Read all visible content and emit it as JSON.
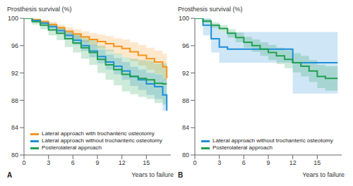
{
  "chart_data": [
    {
      "type": "line",
      "panel_label": "A",
      "y_label": "Prosthesis survival (%)",
      "x_label": "Years to failure",
      "line_style": "step",
      "legend": "lower left",
      "x": [
        0,
        1,
        2,
        3,
        4,
        5,
        6,
        7,
        8,
        9,
        10,
        11,
        12,
        13,
        14,
        15,
        16,
        17,
        17.5
      ],
      "xlim": [
        0,
        18
      ],
      "xticks": [
        0,
        3,
        6,
        9,
        12,
        15
      ],
      "ylim": [
        80,
        100
      ],
      "yticks": [
        80,
        84,
        88,
        92,
        96,
        100
      ],
      "series": [
        {
          "name": "Lateral approach with trochanteric osteotomy",
          "color": "#f7941d",
          "values": [
            100,
            99.8,
            99.5,
            99.1,
            98.6,
            98.1,
            97.7,
            97.3,
            96.9,
            96.6,
            96.3,
            95.9,
            95.6,
            95.1,
            94.6,
            94.1,
            93.6,
            92.9,
            91.2
          ],
          "lower": [
            100,
            99.6,
            99.2,
            98.7,
            98.1,
            97.5,
            97.0,
            96.5,
            96.0,
            95.6,
            95.2,
            94.7,
            94.3,
            93.7,
            93.1,
            92.5,
            91.9,
            91.0,
            89.2
          ],
          "upper": [
            100,
            100,
            99.8,
            99.5,
            99.1,
            98.7,
            98.4,
            98.1,
            97.8,
            97.6,
            97.4,
            97.1,
            96.9,
            96.5,
            96.1,
            95.7,
            95.3,
            94.8,
            93.2
          ]
        },
        {
          "name": "Lateral approach without trochanteric osteotomy",
          "color": "#1f8fd8",
          "values": [
            100,
            99.7,
            99.3,
            98.8,
            98.2,
            97.5,
            96.8,
            96.0,
            95.2,
            94.4,
            93.6,
            93.0,
            92.3,
            91.5,
            91.0,
            90.4,
            90.0,
            88.8,
            86.5
          ],
          "lower": [
            100,
            99.5,
            99.0,
            98.4,
            97.7,
            96.9,
            96.1,
            95.2,
            94.3,
            93.4,
            92.5,
            91.8,
            91.0,
            90.1,
            89.5,
            88.8,
            88.2,
            86.5,
            82.5
          ],
          "upper": [
            100,
            99.9,
            99.6,
            99.2,
            98.7,
            98.1,
            97.5,
            96.8,
            96.1,
            95.4,
            94.7,
            94.2,
            93.6,
            92.9,
            92.5,
            92.0,
            91.8,
            91.1,
            90.5
          ]
        },
        {
          "name": "Posterolateral approach",
          "color": "#20a050",
          "values": [
            100,
            99.5,
            99.0,
            98.3,
            97.8,
            97.0,
            96.4,
            95.7,
            95.0,
            94.0,
            93.2,
            92.5,
            91.8,
            91.5,
            91.2,
            91.0,
            90.5,
            90.4,
            90.4
          ],
          "lower": [
            100,
            99.1,
            98.4,
            97.5,
            96.8,
            95.8,
            95.0,
            94.1,
            93.2,
            92.0,
            91.0,
            90.2,
            89.3,
            88.9,
            88.5,
            88.2,
            87.6,
            87.4,
            87.4
          ],
          "upper": [
            100,
            99.9,
            99.6,
            99.1,
            98.8,
            98.2,
            97.8,
            97.3,
            96.8,
            96.0,
            95.4,
            94.8,
            94.3,
            94.1,
            93.9,
            93.8,
            93.4,
            93.4,
            93.4
          ]
        }
      ]
    },
    {
      "type": "line",
      "panel_label": "B",
      "y_label": "Prosthesis survival (%)",
      "x_label": "Years to failure",
      "line_style": "step",
      "legend": "lower left",
      "x": [
        0,
        1,
        2,
        3,
        4,
        5,
        6,
        7,
        8,
        9,
        10,
        11,
        12,
        13,
        14,
        15,
        16,
        17,
        17.5
      ],
      "xlim": [
        0,
        18
      ],
      "xticks": [
        0,
        3,
        6,
        9,
        12,
        15
      ],
      "ylim": [
        80,
        100
      ],
      "yticks": [
        80,
        84,
        88,
        92,
        96,
        100
      ],
      "series": [
        {
          "name": "Lateral approach without trochanteric osteotomy",
          "color": "#1f8fd8",
          "values": [
            100,
            99.0,
            97.0,
            95.8,
            95.5,
            95.5,
            95.5,
            95.5,
            95.5,
            95.5,
            95.5,
            95.5,
            93.5,
            93.5,
            93.5,
            93.5,
            93.5,
            93.5,
            93.5
          ],
          "lower": [
            100,
            97.5,
            95.0,
            93.5,
            93.5,
            93.5,
            93.5,
            93.5,
            93.5,
            93.5,
            93.5,
            93.5,
            89.0,
            89.0,
            89.0,
            89.0,
            89.0,
            89.0,
            89.0
          ],
          "upper": [
            100,
            100,
            99.0,
            98.0,
            98.0,
            98.0,
            98.0,
            98.0,
            98.0,
            98.0,
            98.0,
            98.0,
            98.0,
            98.0,
            98.0,
            98.0,
            98.0,
            98.0,
            98.0
          ]
        },
        {
          "name": "Posterolateral approach",
          "color": "#20a050",
          "values": [
            100,
            99.6,
            99.0,
            98.5,
            97.8,
            97.2,
            96.5,
            96.0,
            95.5,
            95.0,
            94.5,
            94.0,
            93.5,
            93.0,
            92.3,
            91.5,
            91.2,
            91.2,
            91.2
          ],
          "lower": [
            100,
            99.3,
            98.6,
            98.0,
            97.2,
            96.5,
            95.7,
            95.1,
            94.5,
            93.9,
            93.3,
            92.7,
            92.1,
            91.5,
            90.7,
            89.8,
            89.4,
            89.4,
            89.4
          ],
          "upper": [
            100,
            99.9,
            99.4,
            99.0,
            98.4,
            97.9,
            97.3,
            96.9,
            96.5,
            96.1,
            95.7,
            95.3,
            94.9,
            94.5,
            93.9,
            93.2,
            93.0,
            93.0,
            93.0
          ]
        }
      ]
    }
  ]
}
